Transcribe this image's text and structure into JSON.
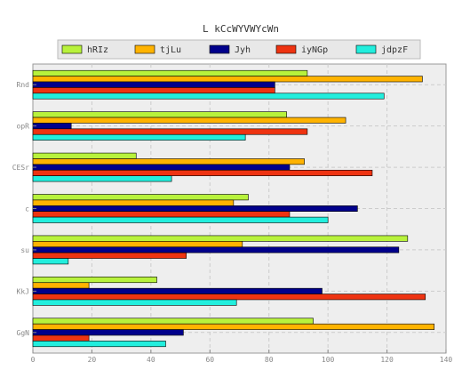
{
  "chart_data": {
    "type": "bar",
    "orientation": "horizontal",
    "title": "L kCcWYVWYcWn",
    "xlabel": "",
    "ylabel": "",
    "xlim": [
      0,
      140
    ],
    "x_ticks": [
      0,
      20,
      40,
      60,
      80,
      100,
      120,
      140
    ],
    "categories": [
      "Rnd",
      "opR",
      "CESr",
      "c",
      "su",
      "KkJ",
      "GgN"
    ],
    "grid": true,
    "legend_position": "top",
    "series": [
      {
        "name": "hRIz",
        "color": "#b8f23c",
        "values": [
          93,
          86,
          35,
          73,
          127,
          42,
          95
        ]
      },
      {
        "name": "tjLu",
        "color": "#ffb300",
        "values": [
          132,
          106,
          92,
          68,
          71,
          19,
          136
        ]
      },
      {
        "name": "Jyh",
        "color": "#00008b",
        "values": [
          82,
          13,
          87,
          110,
          124,
          98,
          51
        ]
      },
      {
        "name": "iyNGp",
        "color": "#ee3311",
        "values": [
          82,
          93,
          115,
          87,
          52,
          133,
          19
        ]
      },
      {
        "name": "jdpzF",
        "color": "#22eedd",
        "values": [
          119,
          72,
          47,
          100,
          12,
          69,
          45
        ]
      }
    ]
  }
}
